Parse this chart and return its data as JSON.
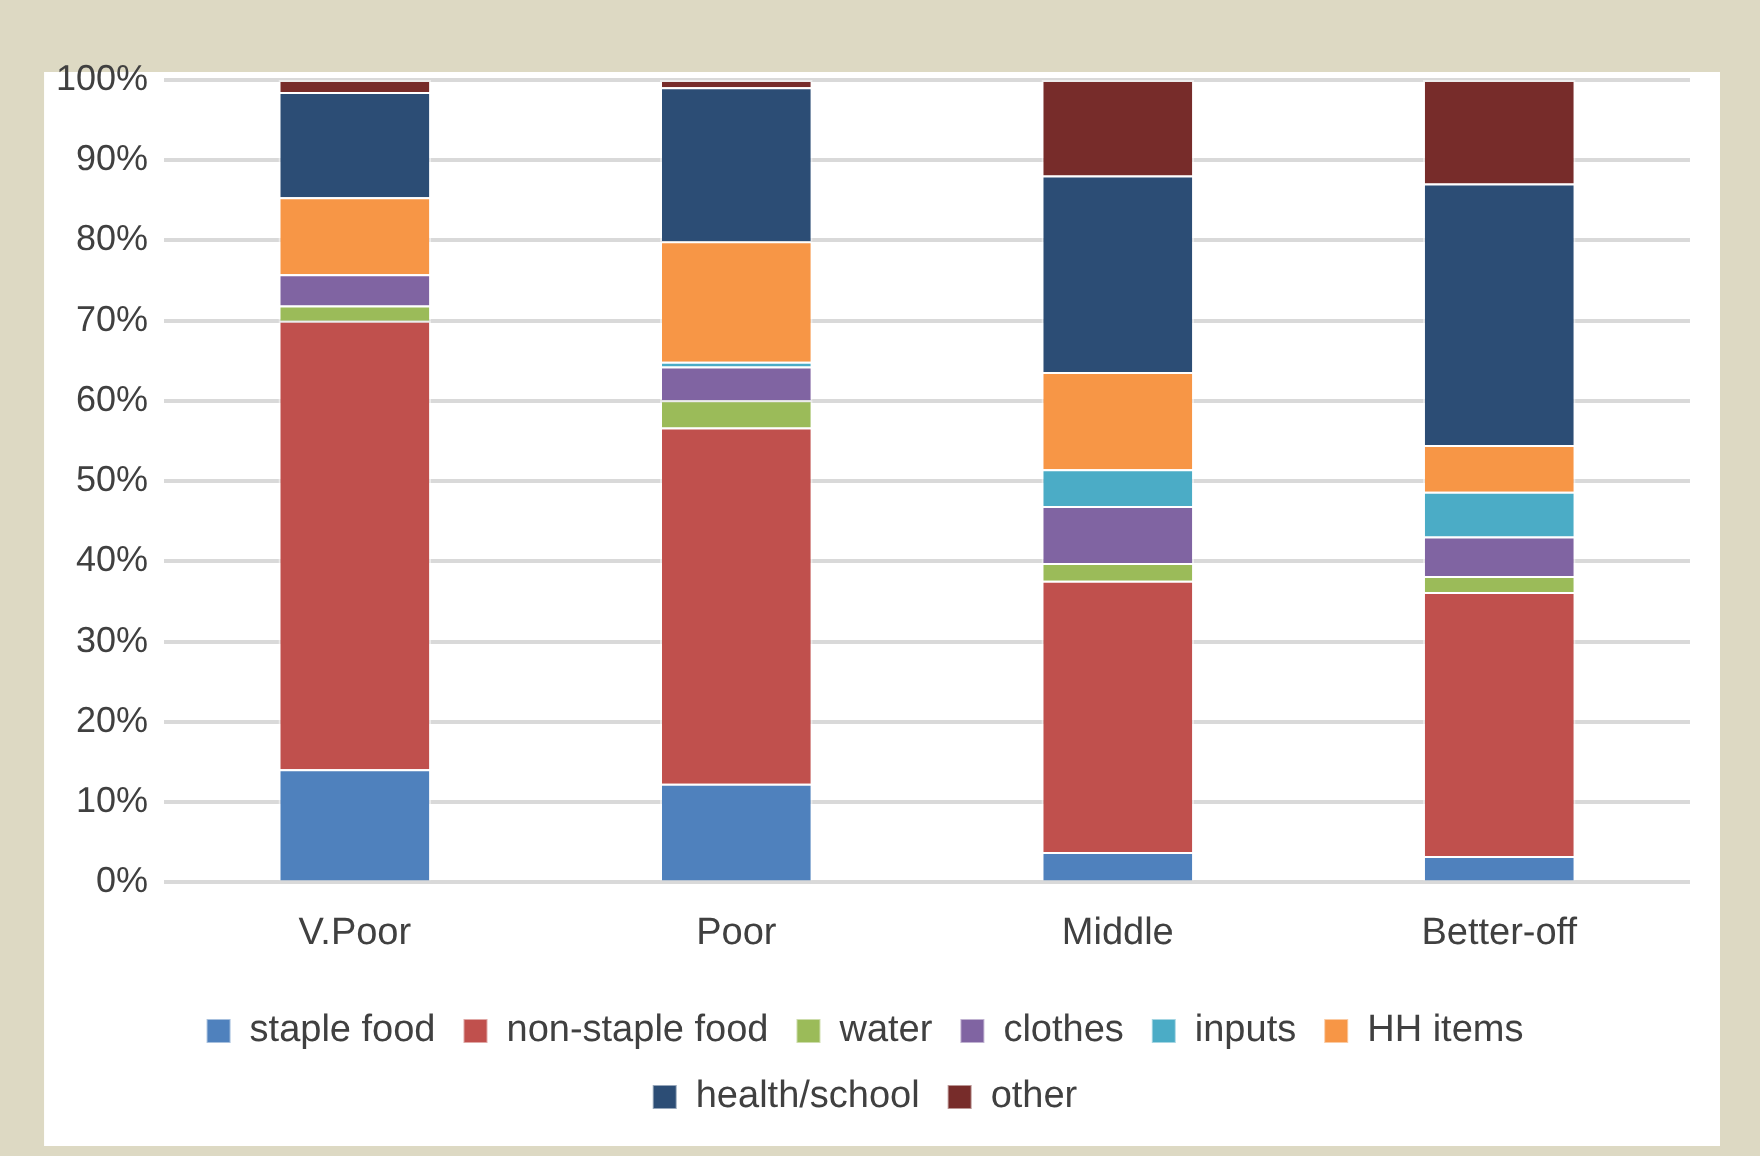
{
  "chart_data": {
    "type": "bar",
    "stacked": true,
    "categories": [
      "V.Poor",
      "Poor",
      "Middle",
      "Better-off"
    ],
    "series": [
      {
        "name": "staple food",
        "color": "#4f81bd",
        "values": [
          14.1,
          12.3,
          3.8,
          3.3
        ]
      },
      {
        "name": "non-staple food",
        "color": "#c0504d",
        "values": [
          55.9,
          44.4,
          33.8,
          32.9
        ]
      },
      {
        "name": "water",
        "color": "#9bbb59",
        "values": [
          1.9,
          3.4,
          2.2,
          2.0
        ]
      },
      {
        "name": "clothes",
        "color": "#8064a2",
        "values": [
          3.9,
          4.2,
          7.1,
          4.9
        ]
      },
      {
        "name": "inputs",
        "color": "#4bacc6",
        "values": [
          0,
          0.6,
          4.6,
          5.6
        ]
      },
      {
        "name": "HH items",
        "color": "#f79646",
        "values": [
          9.6,
          15.0,
          12.1,
          5.8
        ]
      },
      {
        "name": "health/school",
        "color": "#2c4d75",
        "values": [
          13.1,
          19.2,
          24.5,
          32.6
        ]
      },
      {
        "name": "other",
        "color": "#772c2a",
        "values": [
          1.5,
          0.9,
          11.9,
          12.9
        ]
      }
    ],
    "ylim": [
      0,
      100
    ],
    "yticks": [
      {
        "value": 0,
        "label": "0%"
      },
      {
        "value": 10,
        "label": "10%"
      },
      {
        "value": 20,
        "label": "20%"
      },
      {
        "value": 30,
        "label": "30%"
      },
      {
        "value": 40,
        "label": "40%"
      },
      {
        "value": 50,
        "label": "50%"
      },
      {
        "value": 60,
        "label": "60%"
      },
      {
        "value": 70,
        "label": "70%"
      },
      {
        "value": 80,
        "label": "80%"
      },
      {
        "value": 90,
        "label": "90%"
      },
      {
        "value": 100,
        "label": "100%"
      }
    ],
    "grid": "y",
    "legend": "bottom"
  }
}
